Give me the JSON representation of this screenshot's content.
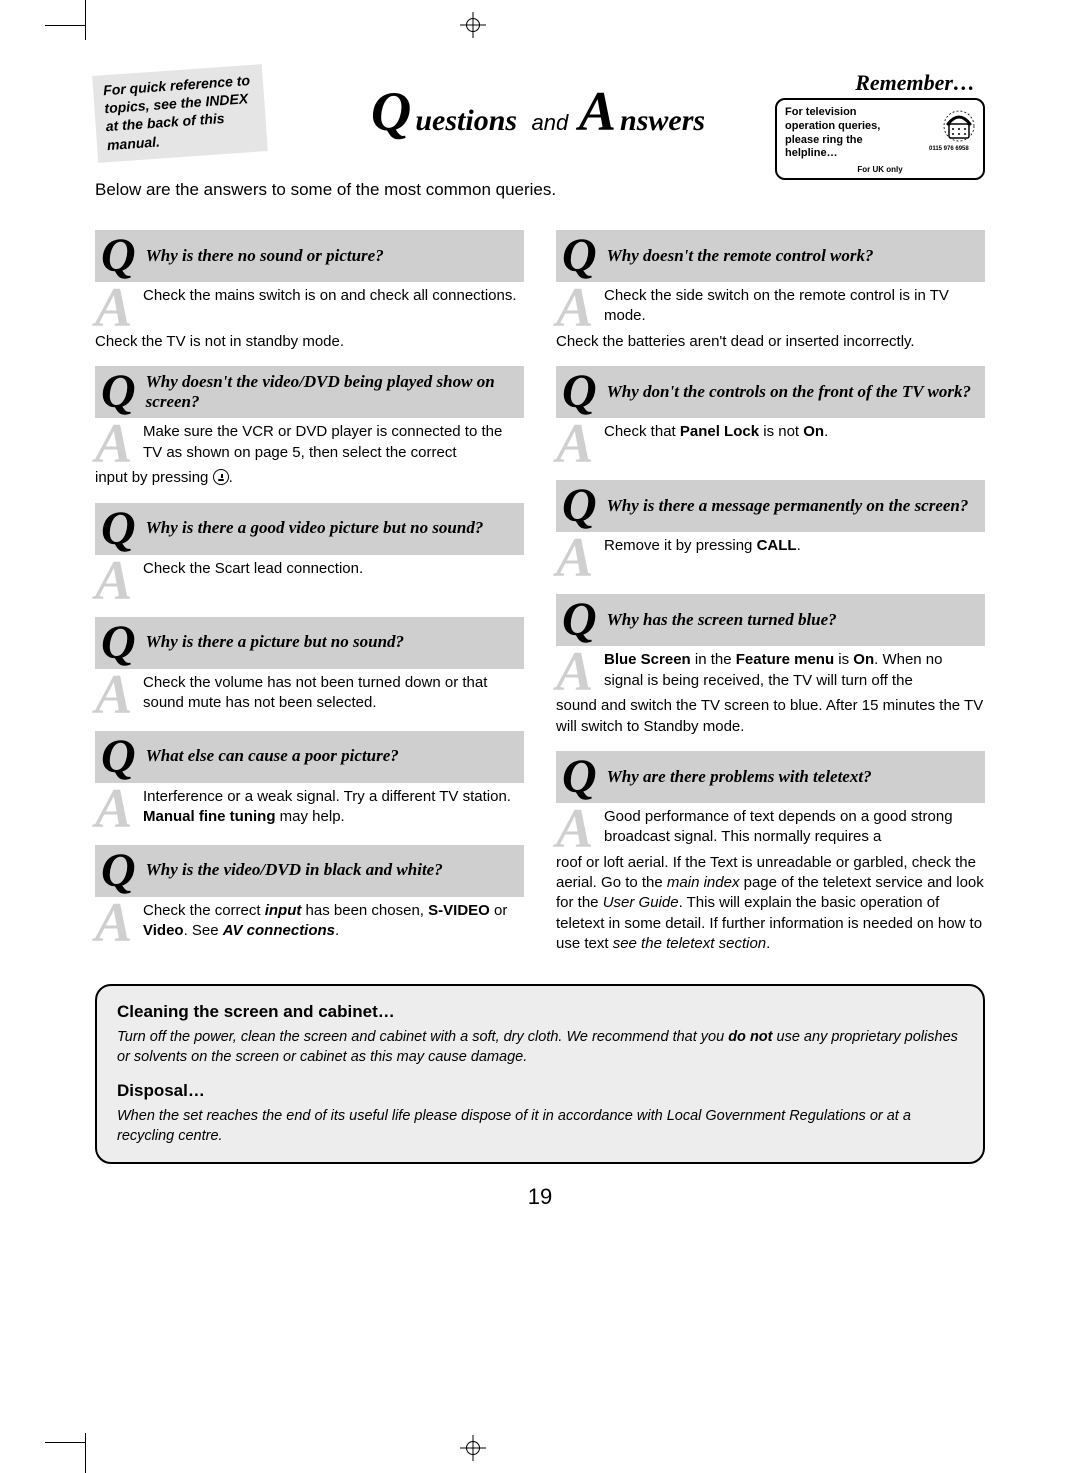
{
  "page_number": "19",
  "colors": {
    "bar": "#cfcfcf",
    "a_letter": "#cfcfcf",
    "info_bg": "#ededed",
    "note_bg": "#e5e5e5"
  },
  "title": {
    "q_cap": "Q",
    "q_rest": "uestions",
    "and": "and",
    "a_cap": "A",
    "a_rest": "nswers"
  },
  "note_box": "For quick reference to topics, see the INDEX at the back of this manual.",
  "remember": {
    "heading": "Remember…",
    "line1": "For television",
    "line2": "operation queries,",
    "line3": "please ring the",
    "line4": "helpline…",
    "phone_number": "0115 976 6958",
    "uk": "For UK only"
  },
  "intro": "Below are the answers to some of the most common queries.",
  "left": [
    {
      "q": "Why is there no sound or picture?",
      "a_first": "Check the mains switch is on and check all connections.",
      "a_cont": "Check the TV is not in standby mode."
    },
    {
      "q": "Why doesn't the video/DVD being played show on screen?",
      "a_html": "Make sure the VCR or DVD player is connected to the TV as shown on page 5, then select the correct",
      "a_cont_html": "input by pressing <span class='source-icon' data-name='source-select-icon' data-interactable='false'></span>."
    },
    {
      "q": "Why is there a good video picture but no sound?",
      "a_first": "Check the Scart lead connection."
    },
    {
      "q": "Why is there a picture but no sound?",
      "a_first": "Check the volume has not been turned down or that sound mute has not been selected."
    },
    {
      "q": "What else can cause a poor picture?",
      "a_html": "Interference or a weak signal. Try a different TV station. <b>Manual fine tuning</b> may help."
    },
    {
      "q": "Why is the video/DVD in black and white?",
      "a_html": "Check the correct <b><i>input</i></b> has been chosen, <b>S-VIDEO</b> or <b>Video</b>. See <b><i>AV connections</i></b>."
    }
  ],
  "right": [
    {
      "q": "Why doesn't the remote control work?",
      "a_first": "Check the side switch on the remote control is in TV mode.",
      "a_cont": "Check the batteries aren't dead or inserted incorrectly."
    },
    {
      "q": "Why don't the controls on the front of the TV work?",
      "a_html": "Check that <b>Panel Lock</b> is not <b>On</b>."
    },
    {
      "q": "Why is there a message permanently on the screen?",
      "a_html": "Remove it by pressing <b>CALL</b>."
    },
    {
      "q": "Why has the screen turned blue?",
      "a_html": "<b>Blue Screen</b> in the <b>Feature menu</b> is <b>On</b>. When no signal is being received, the TV will turn off the",
      "a_cont_html": "sound and switch the TV screen to blue. After 15 minutes the TV will switch to Standby mode."
    },
    {
      "q": "Why are there problems with teletext?",
      "a_html": "Good performance of text depends on a good strong broadcast signal. This normally requires a",
      "a_cont_html": "roof or loft aerial. If the Text is unreadable or garbled, check the aerial. Go to the <i>main index</i> page of the teletext service and look for the <i>User Guide</i>. This will explain the basic operation of teletext in some detail. If further information is needed on how to use text <i>see the teletext section</i>."
    }
  ],
  "info": {
    "h1": "Cleaning the screen and cabinet…",
    "p1_html": "Turn off the power, clean the screen and cabinet with a soft, dry cloth. We recommend that you <b>do not</b> use any proprietary polishes or solvents on the screen or cabinet as this may cause damage.",
    "h2": "Disposal…",
    "p2": "When the set reaches the end of its useful life please dispose of it in accordance with Local Government Regulations or at a recycling centre."
  }
}
